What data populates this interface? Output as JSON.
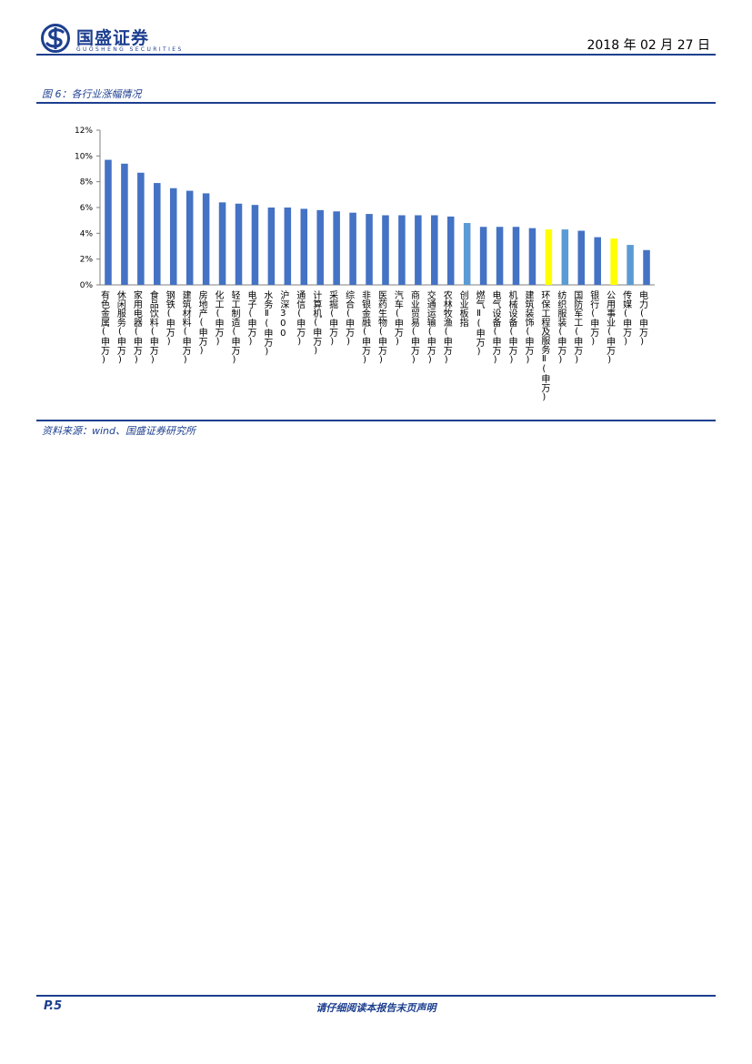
{
  "header": {
    "logo_cn": "国盛证券",
    "logo_en": "GUOSHENG SECURITIES",
    "date": "2018 年 02 月 27 日"
  },
  "figure": {
    "title": "图 6：各行业涨幅情况",
    "source": "资料来源：wind、国盛证券研究所"
  },
  "footer": {
    "page": "P.5",
    "disclaimer": "请仔细阅读本报告末页声明"
  },
  "colors": {
    "brand": "#1d3f8f",
    "bar_dark": "#4472c4",
    "bar_light": "#5b9bd5",
    "bar_highlight": "#ffff00"
  },
  "chart_data": {
    "type": "bar",
    "yticks": [
      "0%",
      "2%",
      "4%",
      "6%",
      "8%",
      "10%",
      "12%"
    ],
    "ylim": [
      0,
      12
    ],
    "grid": false,
    "categories": [
      "有色金属(申万)",
      "休闲服务(申万)",
      "家用电器(申万)",
      "食品饮料(申万)",
      "钢铁(申万)",
      "建筑材料(申万)",
      "房地产(申万)",
      "化工(申万)",
      "轻工制造(申万)",
      "电子(申万)",
      "水务Ⅱ(申万)",
      "沪深300",
      "通信(申万)",
      "计算机(申万)",
      "采掘(申万)",
      "综合(申万)",
      "非银金融(申万)",
      "医药生物(申万)",
      "汽车(申万)",
      "商业贸易(申万)",
      "交通运输(申万)",
      "农林牧渔(申万)",
      "创业板指",
      "燃气Ⅱ(申万)",
      "电气设备(申万)",
      "机械设备(申万)",
      "建筑装饰(申万)",
      "环保工程及服务Ⅱ(申万)",
      "纺织服装(申万)",
      "国防军工(申万)",
      "银行(申万)",
      "公用事业(申万)",
      "传媒(申万)",
      "电力(申万)"
    ],
    "values": [
      9.7,
      9.4,
      8.7,
      7.9,
      7.5,
      7.3,
      7.1,
      6.4,
      6.3,
      6.2,
      6.0,
      6.0,
      5.9,
      5.8,
      5.7,
      5.6,
      5.5,
      5.4,
      5.4,
      5.4,
      5.4,
      5.3,
      4.8,
      4.5,
      4.5,
      4.5,
      4.4,
      4.3,
      4.3,
      4.2,
      3.7,
      3.6,
      3.1,
      2.7
    ],
    "bar_colors": [
      "#4472c4",
      "#4472c4",
      "#4472c4",
      "#4472c4",
      "#4472c4",
      "#4472c4",
      "#4472c4",
      "#4472c4",
      "#4472c4",
      "#4472c4",
      "#4472c4",
      "#4472c4",
      "#4472c4",
      "#4472c4",
      "#4472c4",
      "#4472c4",
      "#4472c4",
      "#4472c4",
      "#4472c4",
      "#4472c4",
      "#4472c4",
      "#4472c4",
      "#5b9bd5",
      "#4472c4",
      "#4472c4",
      "#4472c4",
      "#4472c4",
      "#ffff00",
      "#5b9bd5",
      "#4472c4",
      "#4472c4",
      "#ffff00",
      "#5b9bd5",
      "#4472c4"
    ]
  }
}
